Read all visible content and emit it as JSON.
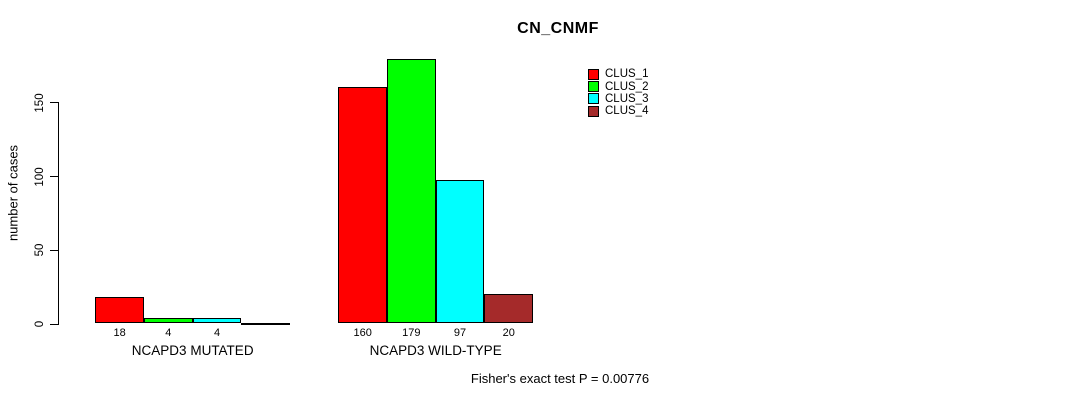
{
  "chart_data": {
    "type": "bar",
    "title": "CN_CNMF",
    "ylabel": "number of cases",
    "yticks": [
      0,
      50,
      100,
      150
    ],
    "ylim": [
      0,
      185
    ],
    "grid": false,
    "legend_position": "top-right",
    "categories": [
      "NCAPD3 MUTATED",
      "NCAPD3 WILD-TYPE"
    ],
    "series": [
      {
        "name": "CLUS_1",
        "color": "#FF0000",
        "values": [
          18,
          160
        ]
      },
      {
        "name": "CLUS_2",
        "color": "#00FF00",
        "values": [
          4,
          179
        ]
      },
      {
        "name": "CLUS_3",
        "color": "#00FFFF",
        "values": [
          4,
          97
        ]
      },
      {
        "name": "CLUS_4",
        "color": "#A52A2A",
        "values": [
          0,
          20
        ]
      }
    ],
    "bar_value_labels": [
      [
        "18",
        "4",
        "4",
        ""
      ],
      [
        "160",
        "179",
        "97",
        "20"
      ]
    ],
    "footnote": "Fisher's exact test P = 0.00776"
  }
}
